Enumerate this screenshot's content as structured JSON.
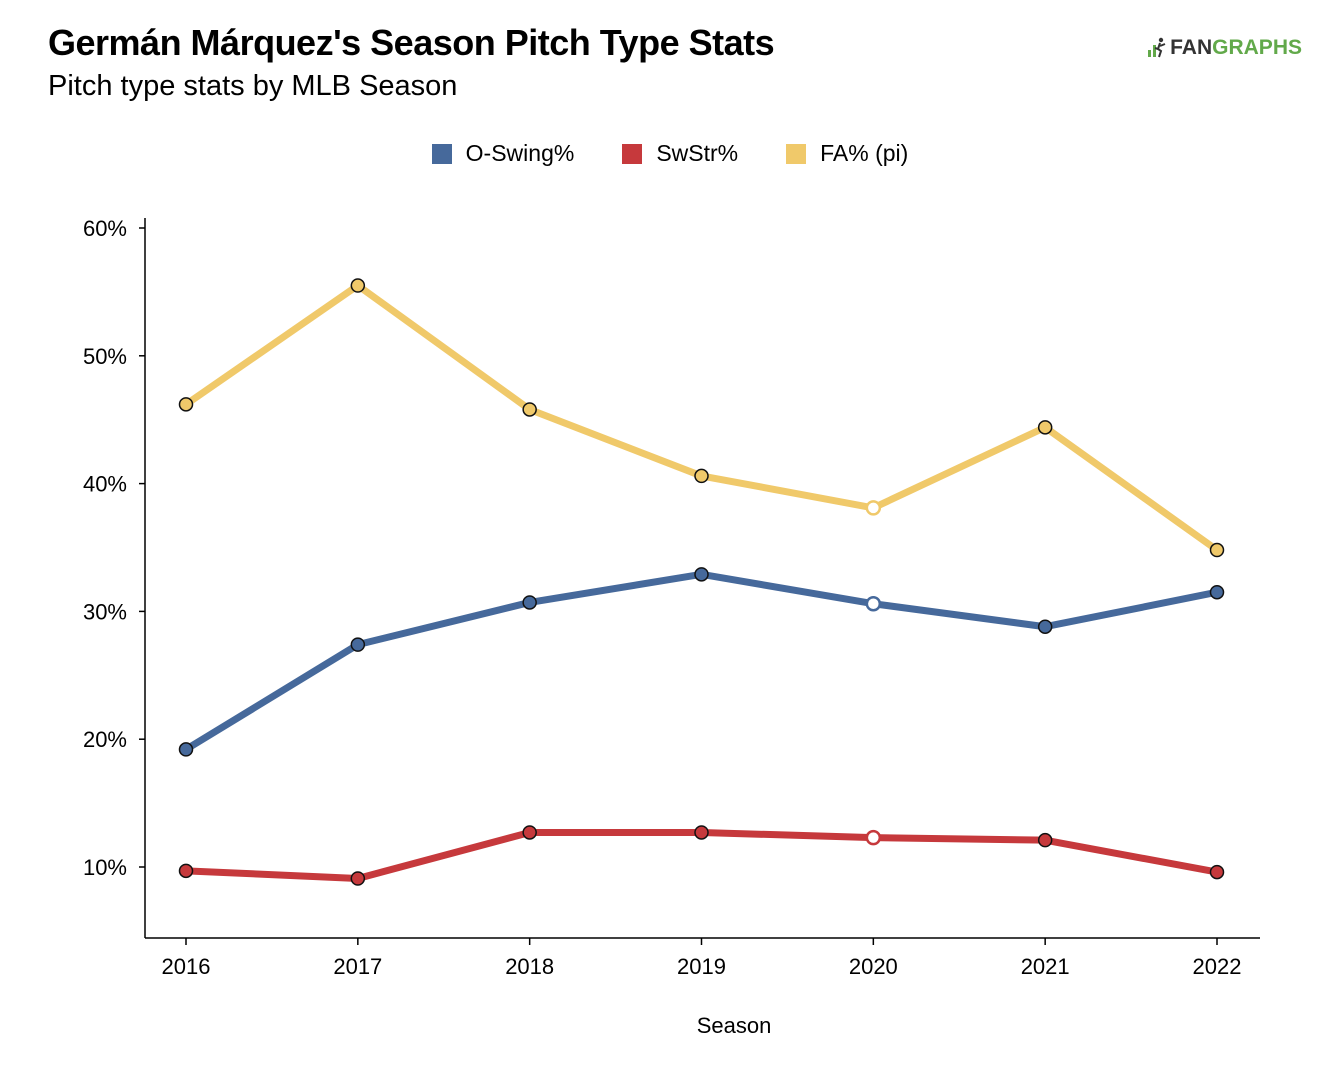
{
  "header": {
    "title": "Germán Márquez's Season Pitch Type Stats",
    "subtitle": "Pitch type stats by MLB Season",
    "logo_fan": "FAN",
    "logo_graphs": "GRAPHS"
  },
  "chart_data": {
    "type": "line",
    "title": "Germán Márquez's Season Pitch Type Stats",
    "subtitle": "Pitch type stats by MLB Season",
    "xlabel": "Season",
    "ylabel": "",
    "x": [
      "2016",
      "2017",
      "2018",
      "2019",
      "2020",
      "2021",
      "2022"
    ],
    "ylim": [
      5,
      60
    ],
    "yticks": [
      10,
      20,
      30,
      40,
      50,
      60
    ],
    "ytick_labels": [
      "10%",
      "20%",
      "30%",
      "40%",
      "50%",
      "60%"
    ],
    "legend_position": "top-center",
    "grid": false,
    "hollow_point_index": 4,
    "series": [
      {
        "name": "O-Swing%",
        "color": "#46699b",
        "values": [
          19.2,
          27.4,
          30.7,
          32.9,
          30.6,
          28.8,
          31.5
        ]
      },
      {
        "name": "SwStr%",
        "color": "#c6393c",
        "values": [
          9.7,
          9.1,
          12.7,
          12.7,
          12.3,
          12.1,
          9.6
        ]
      },
      {
        "name": "FA% (pi)",
        "color": "#f0c96a",
        "values": [
          46.2,
          55.5,
          45.8,
          40.6,
          38.1,
          44.4,
          34.8
        ]
      }
    ]
  }
}
